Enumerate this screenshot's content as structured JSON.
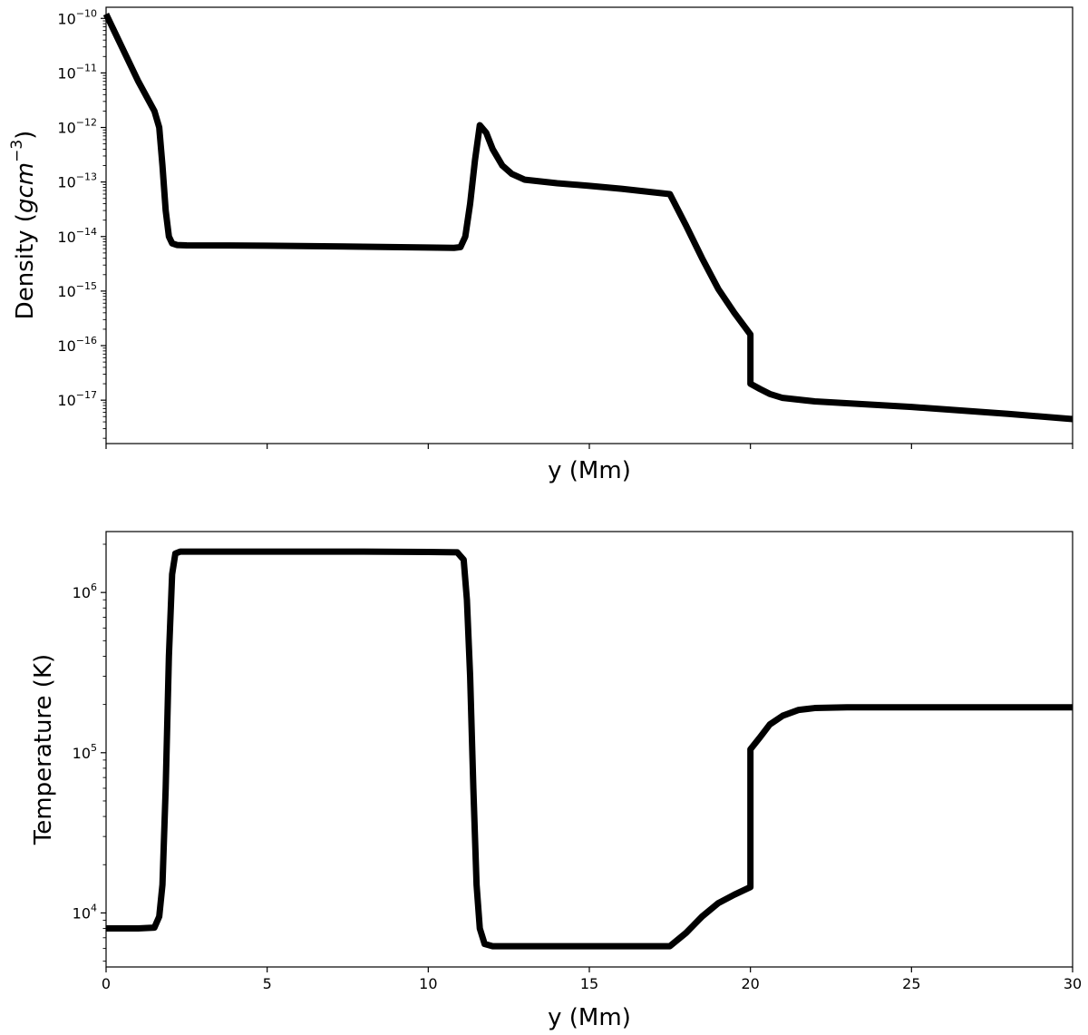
{
  "chart_data": [
    {
      "type": "line",
      "xlabel": "y (Mm)",
      "ylabel": "Density ",
      "ylabel_math": "gcm",
      "ylabel_exp": "−3",
      "yscale": "log",
      "xlim": [
        0,
        30
      ],
      "ylim": [
        1.6e-18,
        1.6e-10
      ],
      "grid": false,
      "x_ticks": [
        0,
        5,
        10,
        15,
        20,
        25,
        30
      ],
      "x_tick_labels_visible": false,
      "y_ticks": [
        {
          "exp": -10,
          "label_base": "10",
          "label_exp": "−10"
        },
        {
          "exp": -11,
          "label_base": "10",
          "label_exp": "−11"
        },
        {
          "exp": -12,
          "label_base": "10",
          "label_exp": "−12"
        },
        {
          "exp": -13,
          "label_base": "10",
          "label_exp": "−13"
        },
        {
          "exp": -14,
          "label_base": "10",
          "label_exp": "−14"
        },
        {
          "exp": -15,
          "label_base": "10",
          "label_exp": "−15"
        },
        {
          "exp": -16,
          "label_base": "10",
          "label_exp": "−16"
        },
        {
          "exp": -17,
          "label_base": "10",
          "label_exp": "−17"
        }
      ],
      "series": [
        {
          "color": "#000000",
          "x": [
            0,
            1.0,
            1.5,
            1.65,
            1.75,
            1.85,
            1.95,
            2.05,
            2.2,
            2.5,
            5,
            8,
            10,
            10.8,
            11.0,
            11.15,
            11.3,
            11.45,
            11.6,
            11.8,
            12.0,
            12.3,
            12.6,
            13,
            14,
            15,
            16,
            17.5,
            18,
            18.5,
            19,
            19.5,
            20.0,
            20.0,
            20.3,
            20.6,
            21,
            22,
            25,
            28,
            30
          ],
          "y": [
            1.2e-10,
            7e-12,
            2e-12,
            1e-12,
            2e-13,
            3e-14,
            1e-14,
            7.5e-15,
            7e-15,
            6.9e-15,
            6.8e-15,
            6.5e-15,
            6.3e-15,
            6.2e-15,
            6.4e-15,
            1e-14,
            4e-14,
            2.5e-13,
            1.1e-12,
            8e-13,
            4e-13,
            2e-13,
            1.4e-13,
            1.1e-13,
            9.5e-14,
            8.5e-14,
            7.5e-14,
            6e-14,
            1.6e-14,
            4e-15,
            1.1e-15,
            4e-16,
            1.6e-16,
            2e-17,
            1.6e-17,
            1.3e-17,
            1.1e-17,
            9.5e-18,
            7.5e-18,
            5.6e-18,
            4.5e-18
          ]
        }
      ]
    },
    {
      "type": "line",
      "xlabel": "y (Mm)",
      "ylabel": "Temperature (K)",
      "yscale": "log",
      "xlim": [
        0,
        30
      ],
      "ylim": [
        4600,
        2400000
      ],
      "grid": false,
      "x_ticks": [
        0,
        5,
        10,
        15,
        20,
        25,
        30
      ],
      "x_tick_labels": [
        "0",
        "5",
        "10",
        "15",
        "20",
        "25",
        "30"
      ],
      "y_ticks": [
        {
          "exp": 6,
          "label_base": "10",
          "label_exp": "6"
        },
        {
          "exp": 5,
          "label_base": "10",
          "label_exp": "5"
        },
        {
          "exp": 4,
          "label_base": "10",
          "label_exp": "4"
        }
      ],
      "series": [
        {
          "color": "#000000",
          "x": [
            0,
            1.0,
            1.5,
            1.65,
            1.75,
            1.85,
            1.95,
            2.05,
            2.15,
            2.3,
            2.6,
            5,
            8,
            10,
            10.9,
            11.1,
            11.2,
            11.3,
            11.4,
            11.5,
            11.6,
            11.75,
            12.0,
            14,
            16,
            17.5,
            18,
            18.5,
            19,
            19.5,
            20.0,
            20.0,
            20.3,
            20.6,
            21,
            21.5,
            22,
            23,
            25,
            30
          ],
          "y": [
            8000,
            8000,
            8100,
            9500,
            15000,
            60000,
            400000,
            1300000,
            1750000,
            1800000,
            1800000,
            1800000,
            1800000,
            1790000,
            1780000,
            1600000,
            900000,
            300000,
            60000,
            15000,
            8000,
            6400,
            6200,
            6200,
            6200,
            6200,
            7500,
            9500,
            11500,
            13000,
            14500,
            105000,
            125000,
            150000,
            170000,
            185000,
            190000,
            192000,
            192000,
            192000
          ]
        }
      ]
    }
  ]
}
